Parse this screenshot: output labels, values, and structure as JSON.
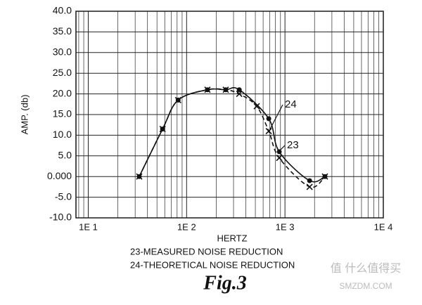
{
  "chart_data": {
    "type": "line",
    "ylabel": "AMP. (db)",
    "xlabel": "HERTZ",
    "log_x": true,
    "grid": true,
    "xlim": [
      7.5,
      10000
    ],
    "xticks": [
      {
        "value": 10,
        "label": "1E 1"
      },
      {
        "value": 100,
        "label": "1E 2"
      },
      {
        "value": 1000,
        "label": "1E 3"
      },
      {
        "value": 10000,
        "label": "1E 4"
      }
    ],
    "ylim": [
      -10,
      40
    ],
    "yticks": [
      {
        "value": -10,
        "label": "-10.0"
      },
      {
        "value": -5,
        "label": "-5.0"
      },
      {
        "value": 0,
        "label": "0.000"
      },
      {
        "value": 5,
        "label": "5.0"
      },
      {
        "value": 10,
        "label": "10.0"
      },
      {
        "value": 15,
        "label": "15.0"
      },
      {
        "value": 20,
        "label": "20.0"
      },
      {
        "value": 25,
        "label": "25.0"
      },
      {
        "value": 30,
        "label": "30.0"
      },
      {
        "value": 35,
        "label": "35.0"
      },
      {
        "value": 40,
        "label": "40.0"
      }
    ],
    "series": [
      {
        "name": "23-MEASURED NOISE REDUCTION",
        "color": "#111111",
        "dash": false,
        "marker": "dot",
        "x": [
          33,
          57,
          82,
          163,
          250,
          343,
          684,
          875,
          1780,
          2550
        ],
        "values": [
          0,
          11.5,
          18.5,
          21,
          21,
          21,
          14,
          6,
          -1,
          0
        ]
      },
      {
        "name": "24-THEORETICAL NOISE REDUCTION",
        "color": "#111111",
        "dash": true,
        "marker": "cross",
        "x": [
          33,
          57,
          82,
          163,
          250,
          343,
          516,
          684,
          875,
          1780,
          2550
        ],
        "values": [
          0,
          11.5,
          18.5,
          21,
          21,
          20,
          17,
          11,
          4.5,
          -2.5,
          0
        ]
      }
    ],
    "annotations": [
      {
        "text": "24",
        "series": 1
      },
      {
        "text": "23",
        "series": 0
      }
    ],
    "figure_label": "Fig.3",
    "watermark": [
      "值 什么值得买",
      "SMZDM.COM"
    ]
  }
}
